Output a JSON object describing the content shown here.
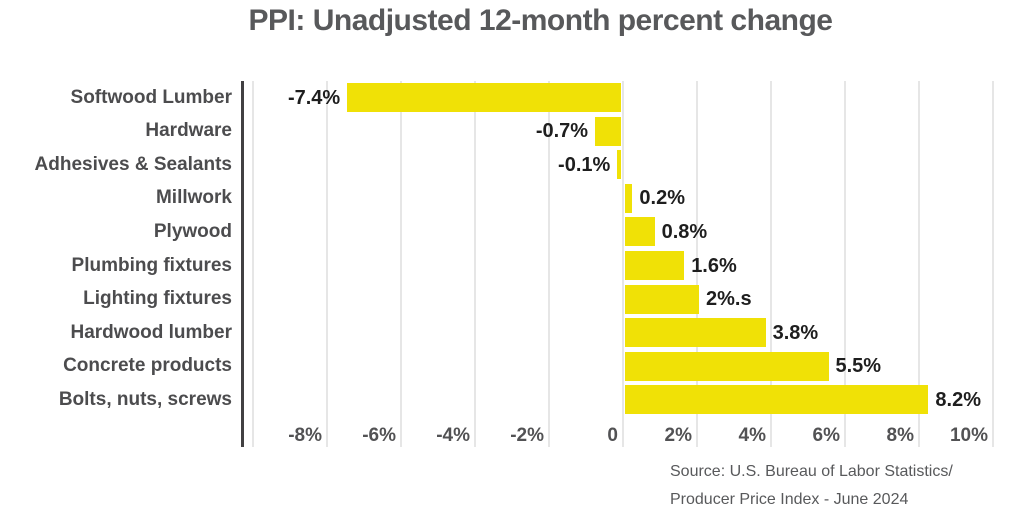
{
  "chart_data": {
    "type": "bar",
    "orientation": "horizontal",
    "title": "PPI: Unadjusted 12-month percent change",
    "categories": [
      "Softwood Lumber",
      "Hardware",
      "Adhesives & Sealants",
      "Millwork",
      "Plywood",
      "Plumbing fixtures",
      "Lighting fixtures",
      "Hardwood lumber",
      "Concrete products",
      "Bolts, nuts, screws"
    ],
    "values": [
      -7.4,
      -0.7,
      -0.1,
      0.2,
      0.8,
      1.6,
      2.0,
      3.8,
      5.5,
      8.2
    ],
    "value_labels": [
      "-7.4%",
      "-0.7%",
      "-0.1%",
      "0.2%",
      "0.8%",
      "1.6%",
      "2%.s",
      "3.8%",
      "5.5%",
      "8.2%"
    ],
    "x_ticks": [
      {
        "value": -8,
        "label": "-8%"
      },
      {
        "value": -6,
        "label": "-6%"
      },
      {
        "value": -4,
        "label": "-4%"
      },
      {
        "value": -2,
        "label": "-2%"
      },
      {
        "value": 0,
        "label": "0"
      },
      {
        "value": 2,
        "label": "2%"
      },
      {
        "value": 4,
        "label": "4%"
      },
      {
        "value": 6,
        "label": "6%"
      },
      {
        "value": 8,
        "label": "8%"
      },
      {
        "value": 10,
        "label": "10%"
      }
    ],
    "gridline_values": [
      -10,
      -8,
      -6,
      -4,
      -2,
      0,
      2,
      4,
      6,
      8,
      10
    ],
    "xlim": [
      -10.3,
      10.8
    ],
    "grid": true,
    "legend": false,
    "xlabel": "",
    "ylabel": "",
    "source_lines": [
      "Source: U.S. Bureau of Labor Statistics/",
      "Producer Price Index - June 2024"
    ]
  },
  "colors": {
    "background": "#FFFFFF",
    "bar": "#F0E106",
    "title_text": "#58595B",
    "category_text": "#4C4C4E",
    "value_text": "#1E1E1E",
    "tick_text": "#525254",
    "gridline": "#E6E6E6",
    "axis_line": "#414042",
    "source_text": "#58595B"
  }
}
